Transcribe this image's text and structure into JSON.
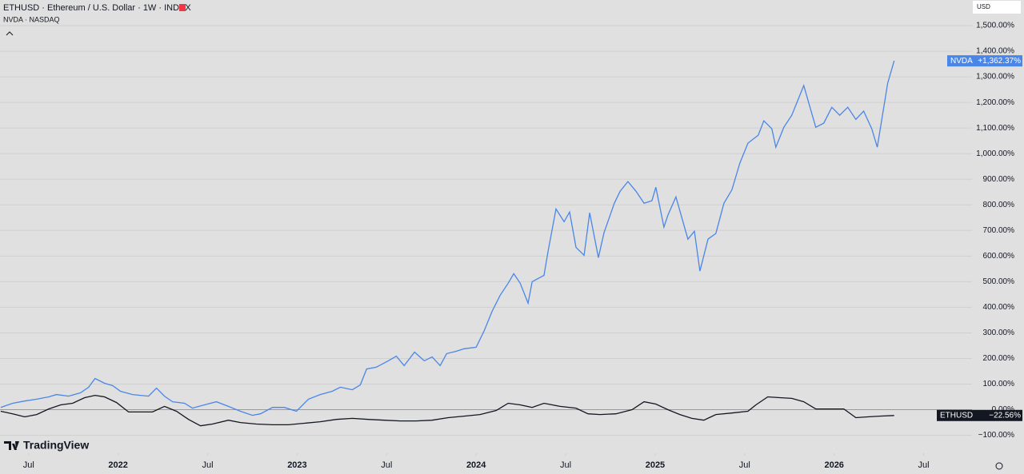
{
  "header": {
    "symbol_line": "ETHUSD · Ethereum / U.S. Dollar · 1W · INDEX",
    "compare_line": "NVDA · NASDAQ",
    "currency": "USD",
    "brand": "TradingView"
  },
  "chart_data": {
    "type": "line",
    "xlim": [
      2021.34,
      2026.77
    ],
    "ylim": [
      -170,
      1600
    ],
    "xticks": [
      {
        "value": 2021.5,
        "label": "Jul"
      },
      2022,
      {
        "value": 2022.5,
        "label": "Jul"
      },
      2023,
      {
        "value": 2023.5,
        "label": "Jul"
      },
      2024,
      {
        "value": 2024.5,
        "label": "Jul"
      },
      2025,
      {
        "value": 2025.5,
        "label": "Jul"
      },
      2026,
      {
        "value": 2026.5,
        "label": "Jul"
      }
    ],
    "yticks": [
      {
        "value": -100,
        "label": "−100.00%"
      },
      {
        "value": 0,
        "label": "0.00%"
      },
      {
        "value": 100,
        "label": "100.00%"
      },
      {
        "value": 200,
        "label": "200.00%"
      },
      {
        "value": 300,
        "label": "300.00%"
      },
      {
        "value": 400,
        "label": "400.00%"
      },
      {
        "value": 500,
        "label": "500.00%"
      },
      {
        "value": 600,
        "label": "600.00%"
      },
      {
        "value": 700,
        "label": "700.00%"
      },
      {
        "value": 800,
        "label": "800.00%"
      },
      {
        "value": 900,
        "label": "900.00%"
      },
      {
        "value": 1000,
        "label": "1,000.00%"
      },
      {
        "value": 1100,
        "label": "1,100.00%"
      },
      {
        "value": 1200,
        "label": "1,200.00%"
      },
      {
        "value": 1300,
        "label": "1,300.00%"
      },
      {
        "value": 1400,
        "label": "1,400.00%"
      },
      {
        "value": 1500,
        "label": "1,500.00%"
      }
    ],
    "grid": true,
    "series": [
      {
        "name": "NVDA",
        "color": "#4a86e8",
        "last_label": "+1,362.37%",
        "x": [
          2021.344,
          2021.411,
          2021.478,
          2021.545,
          2021.612,
          2021.656,
          2021.723,
          2021.79,
          2021.835,
          2021.871,
          2021.924,
          2021.969,
          2022.013,
          2022.08,
          2022.17,
          2022.214,
          2022.259,
          2022.304,
          2022.371,
          2022.415,
          2022.482,
          2022.549,
          2022.616,
          2022.683,
          2022.75,
          2022.795,
          2022.862,
          2022.929,
          2022.996,
          2023.063,
          2023.129,
          2023.196,
          2023.241,
          2023.308,
          2023.353,
          2023.388,
          2023.442,
          2023.509,
          2023.554,
          2023.598,
          2023.656,
          2023.71,
          2023.754,
          2023.799,
          2023.835,
          2023.888,
          2023.933,
          2024.0,
          2024.045,
          2024.089,
          2024.134,
          2024.179,
          2024.21,
          2024.246,
          2024.29,
          2024.313,
          2024.379,
          2024.402,
          2024.446,
          2024.491,
          2024.522,
          2024.558,
          2024.603,
          2024.634,
          2024.683,
          2024.714,
          2024.772,
          2024.804,
          2024.848,
          2024.893,
          2024.938,
          2024.982,
          2025.004,
          2025.049,
          2025.071,
          2025.116,
          2025.183,
          2025.219,
          2025.25,
          2025.295,
          2025.339,
          2025.384,
          2025.429,
          2025.473,
          2025.518,
          2025.576,
          2025.607,
          2025.652,
          2025.674,
          2025.719,
          2025.763,
          2025.83,
          2025.897,
          2025.942,
          2025.987,
          2026.031,
          2026.076,
          2026.121,
          2026.165,
          2026.21,
          2026.241,
          2026.299,
          2026.335
        ],
        "values": [
          9,
          25,
          34,
          41,
          50,
          59,
          53,
          66,
          88,
          122,
          103,
          94,
          72,
          59,
          53,
          84,
          53,
          31,
          25,
          6,
          19,
          31,
          13,
          -6,
          -22,
          -16,
          9,
          9,
          -6,
          41,
          59,
          72,
          88,
          78,
          97,
          159,
          166,
          191,
          209,
          172,
          225,
          191,
          206,
          172,
          219,
          228,
          238,
          244,
          309,
          384,
          447,
          494,
          531,
          494,
          416,
          500,
          525,
          619,
          784,
          734,
          772,
          634,
          603,
          769,
          594,
          691,
          806,
          853,
          891,
          853,
          806,
          816,
          869,
          713,
          759,
          831,
          666,
          697,
          541,
          666,
          688,
          806,
          859,
          963,
          1041,
          1072,
          1128,
          1097,
          1025,
          1103,
          1150,
          1266,
          1103,
          1119,
          1181,
          1150,
          1181,
          1134,
          1166,
          1097,
          1025,
          1275,
          1362.37
        ]
      },
      {
        "name": "ETHUSD",
        "color": "#131722",
        "last_label": "−22.56%",
        "x": [
          2021.344,
          2021.411,
          2021.478,
          2021.545,
          2021.612,
          2021.679,
          2021.746,
          2021.813,
          2021.871,
          2021.924,
          2021.991,
          2022.058,
          2022.125,
          2022.192,
          2022.259,
          2022.326,
          2022.393,
          2022.46,
          2022.527,
          2022.616,
          2022.683,
          2022.772,
          2022.862,
          2022.951,
          2023.04,
          2023.129,
          2023.219,
          2023.308,
          2023.397,
          2023.487,
          2023.576,
          2023.665,
          2023.754,
          2023.844,
          2023.933,
          2024.022,
          2024.112,
          2024.179,
          2024.246,
          2024.313,
          2024.379,
          2024.469,
          2024.558,
          2024.625,
          2024.692,
          2024.781,
          2024.871,
          2024.938,
          2025.004,
          2025.071,
          2025.138,
          2025.205,
          2025.272,
          2025.339,
          2025.429,
          2025.518,
          2025.563,
          2025.629,
          2025.696,
          2025.763,
          2025.83,
          2025.897,
          2025.987,
          2026.054,
          2026.121,
          2026.188,
          2026.254,
          2026.335
        ],
        "values": [
          -6,
          -16,
          -28,
          -19,
          3,
          19,
          25,
          47,
          56,
          50,
          28,
          -9,
          -9,
          -9,
          13,
          -6,
          -38,
          -63,
          -56,
          -41,
          -50,
          -56,
          -59,
          -59,
          -53,
          -47,
          -38,
          -34,
          -38,
          -41,
          -44,
          -44,
          -41,
          -31,
          -25,
          -19,
          -3,
          25,
          19,
          9,
          25,
          13,
          6,
          -16,
          -19,
          -16,
          0,
          31,
          22,
          0,
          -19,
          -34,
          -41,
          -19,
          -13,
          -6,
          19,
          50,
          47,
          44,
          31,
          3,
          3,
          3,
          -31,
          -28,
          -25,
          -22.56
        ]
      }
    ]
  }
}
